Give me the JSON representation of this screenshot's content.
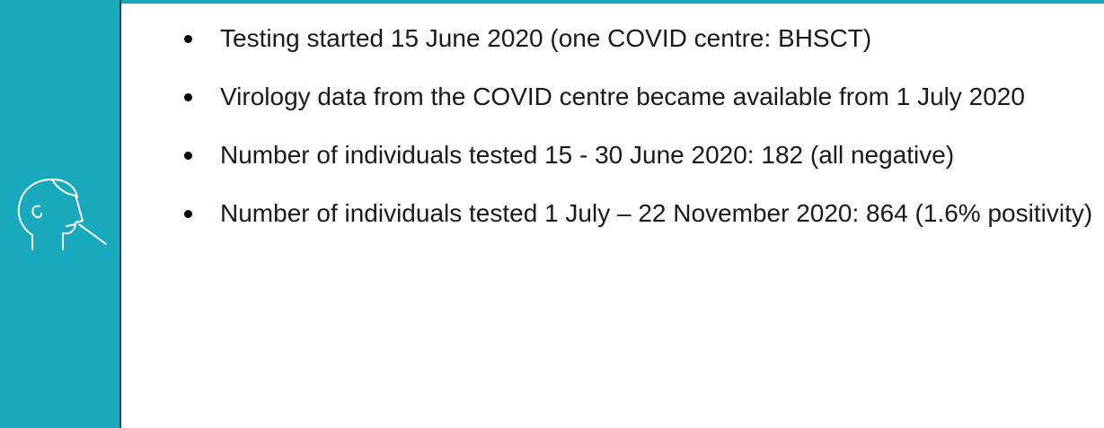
{
  "bullets": [
    "Testing started 15 June 2020 (one COVID centre: BHSCT)",
    "Virology data from the COVID centre became available from 1 July 2020",
    "Number of individuals tested 15 - 30 June 2020: 182 (all negative)",
    "Number of individuals tested 1 July – 22 November 2020: 864 (1.6% positivity)"
  ]
}
